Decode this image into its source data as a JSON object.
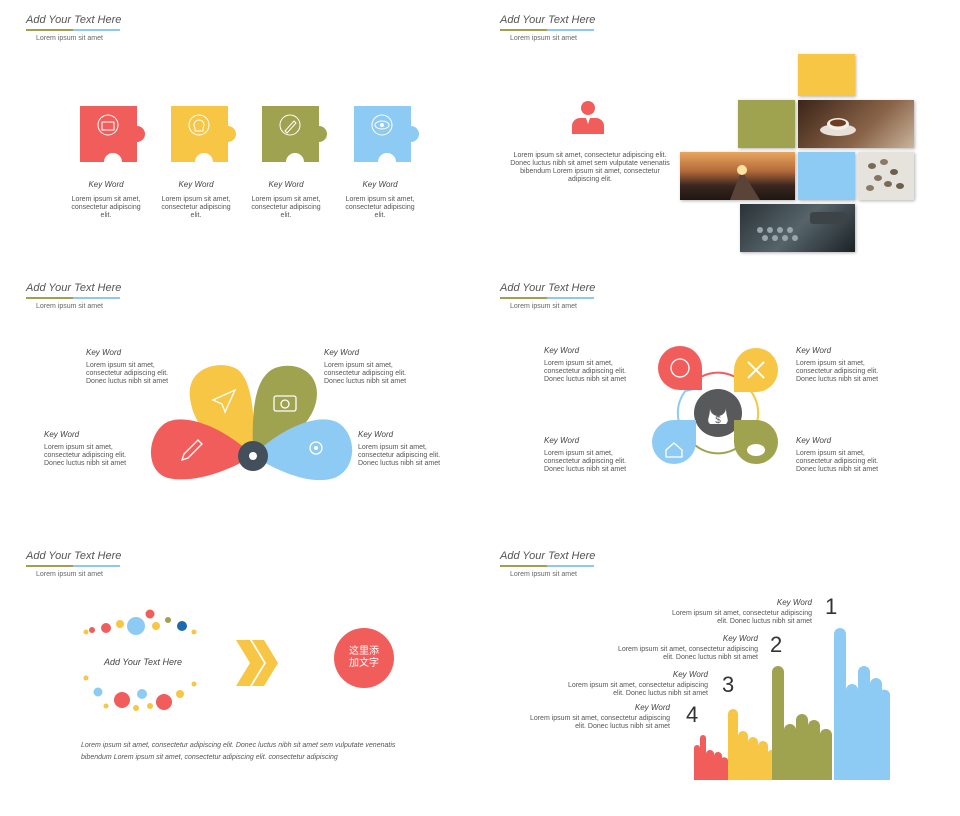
{
  "colors": {
    "red": "#f15d5b",
    "yellow": "#f7c644",
    "olive": "#9fa24f",
    "blue": "#8ecbf4",
    "dark": "#444f5c"
  },
  "slides": [
    {
      "title": "Add Your Text Here",
      "subtitle": "Lorem ipsum  sit amet",
      "items": [
        {
          "keyword": "Key Word",
          "text": "Lorem ipsum  sit amet, consectetur adipiscing elit.",
          "icon": "briefcase-icon"
        },
        {
          "keyword": "Key Word",
          "text": "Lorem ipsum  sit amet, consectetur adipiscing elit.",
          "icon": "lightbulb-icon"
        },
        {
          "keyword": "Key Word",
          "text": "Lorem ipsum  sit amet, consectetur adipiscing elit.",
          "icon": "pencil-icon"
        },
        {
          "keyword": "Key Word",
          "text": "Lorem ipsum  sit amet, consectetur adipiscing elit.",
          "icon": "eye-icon"
        }
      ]
    },
    {
      "title": "Add Your Text Here",
      "subtitle": "Lorem ipsum  sit amet",
      "text": "Lorem ipsum  sit amet, consectetur adipiscing elit. Donec luctus nibh sit amet sem vulputate venenatis bibendum Lorem ipsum  sit amet, consectetur adipiscing elit."
    },
    {
      "title": "Add Your Text Here",
      "subtitle": "Lorem ipsum  sit amet",
      "items": [
        {
          "keyword": "Key Word",
          "text": "Lorem ipsum  sit amet, consectetur adipiscing elit. Donec luctus nibh sit amet"
        },
        {
          "keyword": "Key Word",
          "text": "Lorem ipsum  sit amet, consectetur adipiscing elit. Donec luctus nibh sit amet"
        },
        {
          "keyword": "Key Word",
          "text": "Lorem ipsum  sit amet, consectetur adipiscing elit. Donec luctus nibh sit amet"
        },
        {
          "keyword": "Key Word",
          "text": "Lorem ipsum  sit amet, consectetur adipiscing elit. Donec luctus nibh sit amet"
        }
      ]
    },
    {
      "title": "Add Your Text Here",
      "subtitle": "Lorem ipsum  sit amet",
      "items": [
        {
          "keyword": "Key Word",
          "text": "Lorem ipsum  sit amet, consectetur adipiscing elit. Donec luctus nibh sit amet"
        },
        {
          "keyword": "Key Word",
          "text": "Lorem ipsum  sit amet, consectetur adipiscing elit. Donec luctus nibh sit amet"
        },
        {
          "keyword": "Key Word",
          "text": "Lorem ipsum  sit amet, consectetur adipiscing elit. Donec luctus nibh sit amet"
        },
        {
          "keyword": "Key Word",
          "text": "Lorem ipsum  sit amet, consectetur adipiscing elit. Donec luctus nibh sit amet"
        }
      ],
      "center_icon": "$"
    },
    {
      "title": "Add Your Text Here",
      "subtitle": "Lorem ipsum  sit amet",
      "ring_text": "Add Your Text Here",
      "circle_text": "这里添\n加文字",
      "text": "Lorem ipsum  sit amet, consectetur adipiscing elit. Donec luctus nibh sit amet sem vulputate venenatis bibendum Lorem ipsum  sit amet, consectetur adipiscing elit. consectetur adipiscing"
    },
    {
      "title": "Add Your Text Here",
      "subtitle": "Lorem ipsum  sit amet",
      "items": [
        {
          "keyword": "Key Word",
          "text": "Lorem ipsum  sit amet, consectetur adipiscing elit. Donec luctus nibh sit amet",
          "number": "1"
        },
        {
          "keyword": "Key Word",
          "text": "Lorem ipsum  sit amet, consectetur adipiscing elit. Donec luctus nibh sit amet",
          "number": "2"
        },
        {
          "keyword": "Key Word",
          "text": "Lorem ipsum  sit amet, consectetur adipiscing elit. Donec luctus nibh sit amet",
          "number": "3"
        },
        {
          "keyword": "Key Word",
          "text": "Lorem ipsum  sit amet, consectetur adipiscing elit. Donec luctus nibh sit amet",
          "number": "4"
        }
      ]
    }
  ]
}
